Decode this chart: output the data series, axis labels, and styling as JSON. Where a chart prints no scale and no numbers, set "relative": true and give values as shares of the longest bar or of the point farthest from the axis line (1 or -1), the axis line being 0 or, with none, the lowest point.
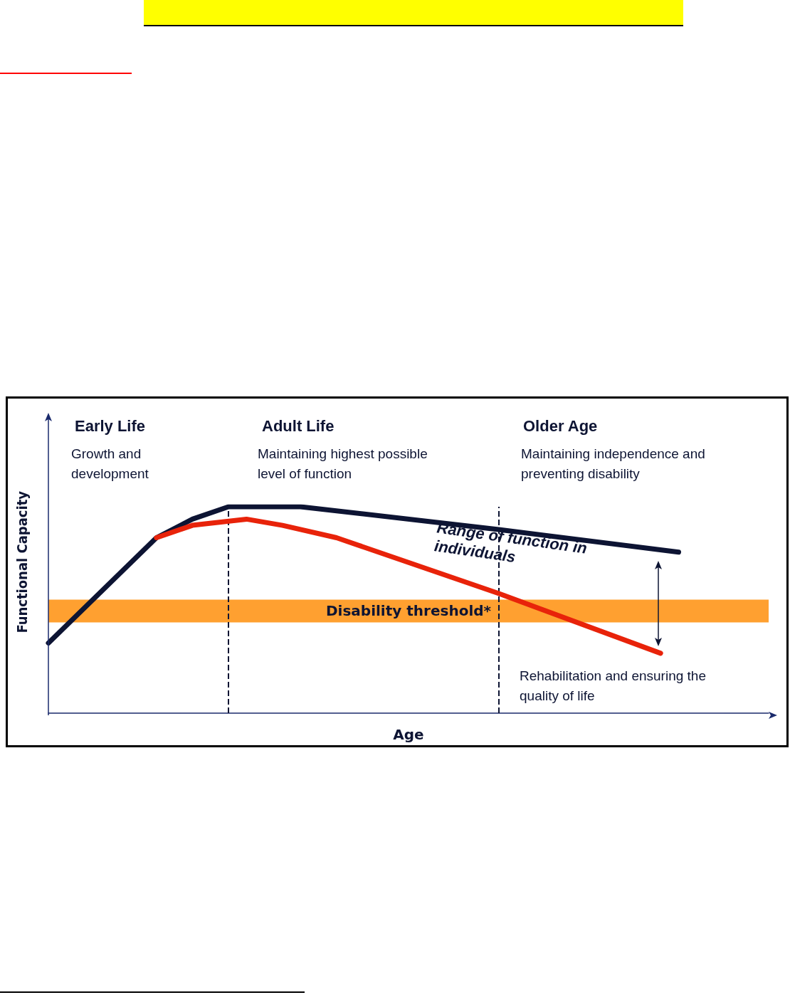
{
  "chart_data": {
    "type": "line",
    "relative": true,
    "xlabel": "Age",
    "ylabel": "Functional Capacity",
    "grid": false,
    "marker": "none",
    "line_style": "solid",
    "categories": [
      null,
      null,
      null,
      null,
      null,
      null,
      null,
      null,
      null,
      null,
      null,
      null,
      null,
      null,
      null,
      null,
      null,
      null,
      null,
      null,
      null,
      null,
      null,
      null,
      null,
      null,
      null,
      null,
      null,
      null,
      null,
      null,
      null,
      null,
      null,
      null,
      null,
      null,
      null,
      null,
      null
    ],
    "series": [
      {
        "color": "#0d1433",
        "values": [
          0.34,
          null,
          null,
          null,
          null,
          null,
          0.85,
          null,
          0.94,
          null,
          1,
          null,
          null,
          null,
          1,
          null,
          null,
          null,
          null,
          null,
          null,
          null,
          null,
          null,
          null,
          0.89,
          null,
          null,
          null,
          null,
          null,
          null,
          null,
          null,
          null,
          0.78,
          null,
          null,
          null,
          null,
          null
        ]
      },
      {
        "color": "#e8230a",
        "values": [
          null,
          null,
          null,
          null,
          null,
          null,
          0.85,
          null,
          0.91,
          null,
          null,
          0.94,
          null,
          0.91,
          null,
          null,
          0.85,
          null,
          null,
          null,
          null,
          null,
          null,
          null,
          null,
          0.58,
          null,
          null,
          null,
          null,
          null,
          null,
          null,
          null,
          0.29,
          null,
          null,
          null,
          null,
          null,
          null
        ]
      }
    ],
    "bands": [
      {
        "axis": "y",
        "from": 0.44,
        "to": 0.55,
        "label": "Disability threshold*",
        "color": "#ffa030"
      }
    ],
    "annotations": [
      "Early Life",
      "Growth and development",
      "Adult Life",
      "Maintaining highest possible level of function",
      "Older Age",
      "Maintaining independence and preventing disability",
      "Range of function in individuals",
      "Rehabilitation and ensuring the quality of life"
    ]
  }
}
